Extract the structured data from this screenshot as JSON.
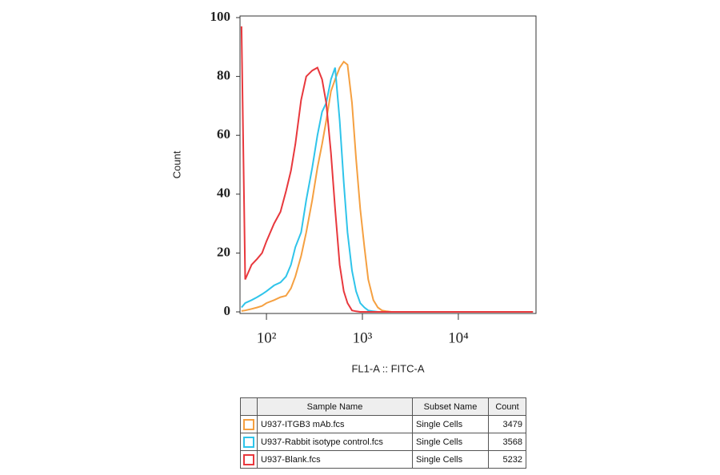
{
  "chart_data": {
    "type": "line",
    "ylabel": "Count",
    "xlabel": "FL1-A :: FITC-A",
    "log_x": true,
    "xlim": [
      53,
      64500
    ],
    "ylim": [
      0,
      100
    ],
    "xticks": [
      {
        "value": 100,
        "label": "10²"
      },
      {
        "value": 1000,
        "label": "10³"
      },
      {
        "value": 10000,
        "label": "10⁴"
      }
    ],
    "yticks": [
      0,
      20,
      40,
      60,
      80,
      100
    ],
    "x": [
      55,
      60,
      70,
      80,
      90,
      100,
      120,
      140,
      160,
      180,
      200,
      230,
      260,
      300,
      340,
      380,
      420,
      470,
      520,
      580,
      640,
      700,
      780,
      860,
      950,
      1050,
      1150,
      1300,
      1450,
      1600,
      1800,
      2000,
      2500,
      3000,
      5000,
      10000,
      30000,
      60000
    ],
    "table_columns": [
      "Sample Name",
      "Subset Name",
      "Count"
    ],
    "series": [
      {
        "name": "U937-ITGB3 mAb.fcs",
        "color": "#f5a041",
        "subset": "Single Cells",
        "count": 3479,
        "values": [
          0.3,
          0.5,
          1,
          1.5,
          2,
          3,
          4,
          5,
          5.5,
          8,
          12,
          19,
          27,
          38,
          49,
          57,
          65,
          75,
          79,
          83,
          85,
          84,
          71,
          52,
          35,
          22,
          11,
          4,
          1.5,
          0.5,
          0.2,
          0,
          0,
          0,
          0,
          0,
          0,
          0
        ]
      },
      {
        "name": "U937-Rabbit isotype control.fcs",
        "color": "#2fc4ea",
        "subset": "Single Cells",
        "count": 3568,
        "values": [
          1.5,
          3,
          4,
          5,
          6,
          7,
          9,
          10,
          12,
          16,
          22,
          27,
          38,
          49,
          60,
          68,
          71,
          79,
          83,
          65,
          44,
          27,
          14,
          7,
          3,
          1.5,
          0.5,
          0.2,
          0,
          0,
          0,
          0,
          0,
          0,
          0,
          0,
          0,
          0
        ]
      },
      {
        "name": "U937-Blank.fcs",
        "color": "#e8383d",
        "subset": "Single Cells",
        "count": 5232,
        "values": [
          97,
          11,
          16,
          18,
          20,
          24,
          30,
          34,
          41,
          48,
          57,
          72,
          80,
          82,
          83,
          79,
          71,
          54,
          35,
          16,
          7,
          3,
          0.5,
          0.2,
          0,
          0,
          0,
          0,
          0,
          0,
          0,
          0,
          0,
          0,
          0,
          0,
          0,
          0
        ]
      }
    ]
  }
}
